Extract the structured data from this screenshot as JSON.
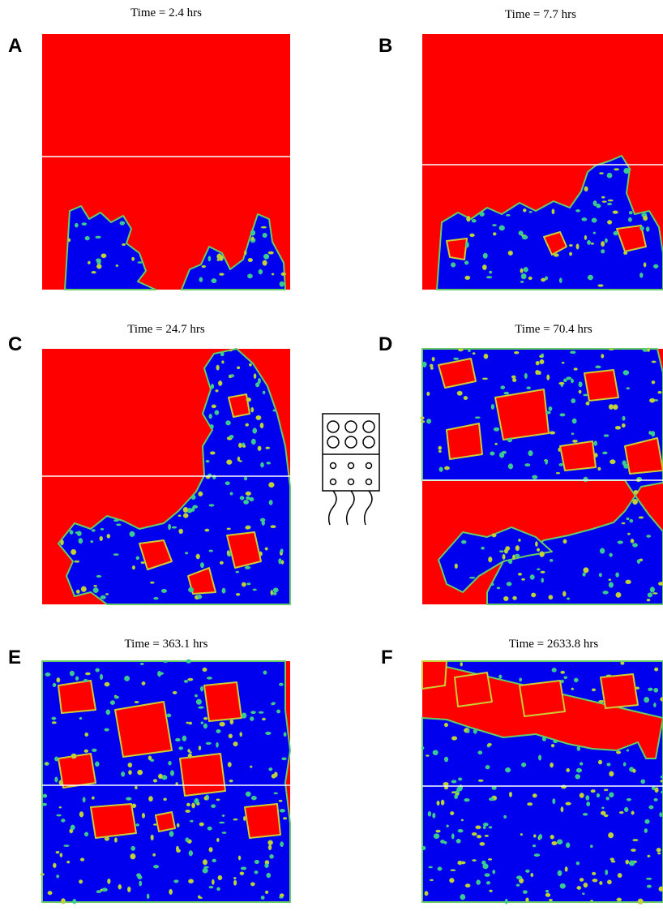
{
  "panels": [
    {
      "letter": "A",
      "title": "Time = 2.4 hrs"
    },
    {
      "letter": "B",
      "title": "Time = 7.7 hrs"
    },
    {
      "letter": "C",
      "title": "Time = 24.7 hrs"
    },
    {
      "letter": "D",
      "title": "Time = 70.4 hrs"
    },
    {
      "letter": "E",
      "title": "Time = 363.1 hrs"
    },
    {
      "letter": "F",
      "title": "Time = 2633.8 hrs"
    }
  ]
}
